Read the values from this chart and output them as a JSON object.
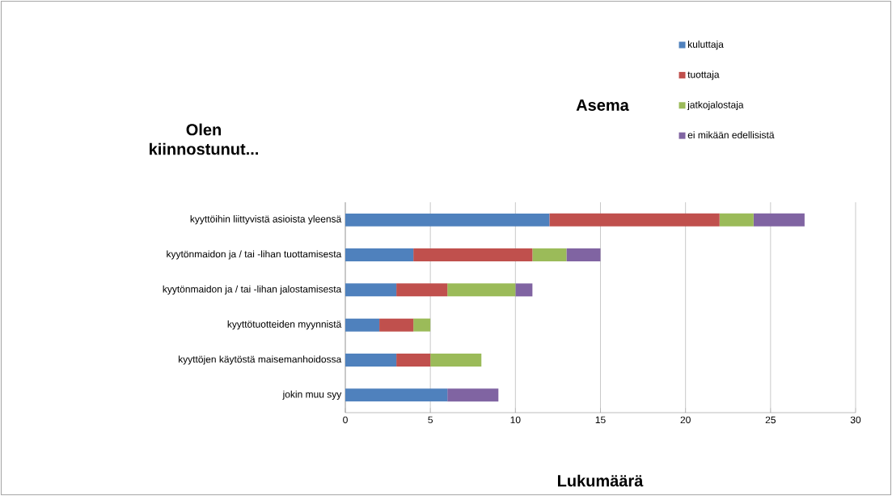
{
  "chart_data": {
    "type": "bar",
    "orientation": "horizontal",
    "stacked": true,
    "ylabel": "Olen kiinnostunut...",
    "legend_title": "Asema",
    "xlabel": "Lukumäärä",
    "categories": [
      "kyyttöihin liittyvistä asioista yleensä",
      "kyytönmaidon ja / tai -lihan tuottamisesta",
      "kyytönmaidon ja / tai -lihan jalostamisesta",
      "kyyttötuotteiden myynnistä",
      "kyyttöjen käytöstä maisemanhoidossa",
      "jokin muu syy"
    ],
    "series": [
      {
        "name": "kuluttaja",
        "color": "#4f81bd",
        "values": [
          12,
          4,
          3,
          2,
          3,
          6
        ]
      },
      {
        "name": "tuottaja",
        "color": "#c0504d",
        "values": [
          10,
          7,
          3,
          2,
          2,
          0
        ]
      },
      {
        "name": "jatkojalostaja",
        "color": "#9bbb59",
        "values": [
          2,
          2,
          4,
          1,
          3,
          0
        ]
      },
      {
        "name": "ei mikään edellisistä",
        "color": "#8064a2",
        "values": [
          3,
          2,
          1,
          0,
          0,
          3
        ]
      }
    ],
    "xlim": [
      0,
      30
    ],
    "xticks": [
      0,
      5,
      10,
      15,
      20,
      25,
      30
    ],
    "grid": "x",
    "legend": "top right"
  }
}
